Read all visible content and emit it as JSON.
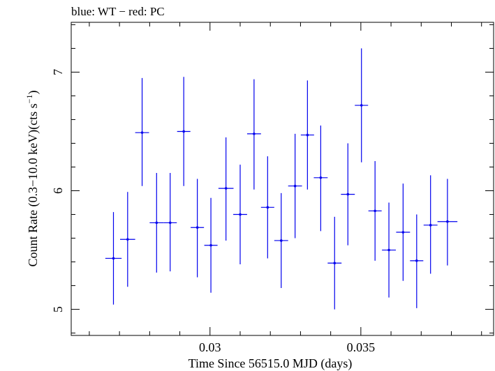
{
  "chart_data": {
    "type": "scatter",
    "title": "blue: WT − red: PC",
    "xlabel": "Time Since 56515.0 MJD (days)",
    "ylabel": "Count Rate (0.3−10.0 keV)(cts s",
    "ylabel_sup": "−1",
    "ylabel_end": ")",
    "xlim": [
      0.0254,
      0.0394
    ],
    "ylim": [
      4.78,
      7.42
    ],
    "x_ticks": [
      0.03,
      0.035
    ],
    "x_tick_labels": [
      "0.03",
      "0.035"
    ],
    "y_ticks": [
      5,
      6,
      7
    ],
    "y_tick_labels": [
      "5",
      "6",
      "7"
    ],
    "colors": {
      "WT": "#0000ee",
      "axis": "#000000"
    },
    "series": [
      {
        "name": "WT",
        "points": [
          {
            "x": 0.0268,
            "xerr": 0.00027,
            "y": 5.43,
            "ylo": 5.04,
            "yhi": 5.82
          },
          {
            "x": 0.02727,
            "xerr": 0.00025,
            "y": 5.59,
            "ylo": 5.19,
            "yhi": 5.99
          },
          {
            "x": 0.02775,
            "xerr": 0.00023,
            "y": 6.49,
            "ylo": 6.04,
            "yhi": 6.95
          },
          {
            "x": 0.02823,
            "xerr": 0.00023,
            "y": 5.73,
            "ylo": 5.31,
            "yhi": 6.15
          },
          {
            "x": 0.02868,
            "xerr": 0.00022,
            "y": 5.73,
            "ylo": 5.32,
            "yhi": 6.15
          },
          {
            "x": 0.02913,
            "xerr": 0.00022,
            "y": 6.5,
            "ylo": 6.04,
            "yhi": 6.96
          },
          {
            "x": 0.02958,
            "xerr": 0.00022,
            "y": 5.69,
            "ylo": 5.27,
            "yhi": 6.1
          },
          {
            "x": 0.03003,
            "xerr": 0.00022,
            "y": 5.54,
            "ylo": 5.14,
            "yhi": 5.94
          },
          {
            "x": 0.03053,
            "xerr": 0.00025,
            "y": 6.02,
            "ylo": 5.58,
            "yhi": 6.45
          },
          {
            "x": 0.031,
            "xerr": 0.00023,
            "y": 5.8,
            "ylo": 5.38,
            "yhi": 6.22
          },
          {
            "x": 0.03146,
            "xerr": 0.00023,
            "y": 6.48,
            "ylo": 6.01,
            "yhi": 6.94
          },
          {
            "x": 0.03191,
            "xerr": 0.00022,
            "y": 5.86,
            "ylo": 5.43,
            "yhi": 6.29
          },
          {
            "x": 0.03236,
            "xerr": 0.00023,
            "y": 5.58,
            "ylo": 5.18,
            "yhi": 5.98
          },
          {
            "x": 0.03282,
            "xerr": 0.00023,
            "y": 6.04,
            "ylo": 5.6,
            "yhi": 6.48
          },
          {
            "x": 0.03323,
            "xerr": 0.00022,
            "y": 6.47,
            "ylo": 6.01,
            "yhi": 6.93
          },
          {
            "x": 0.03367,
            "xerr": 0.00023,
            "y": 6.11,
            "ylo": 5.66,
            "yhi": 6.55
          },
          {
            "x": 0.03413,
            "xerr": 0.00023,
            "y": 5.39,
            "ylo": 5.0,
            "yhi": 5.78
          },
          {
            "x": 0.03457,
            "xerr": 0.00023,
            "y": 5.97,
            "ylo": 5.54,
            "yhi": 6.4
          },
          {
            "x": 0.03502,
            "xerr": 0.00022,
            "y": 6.72,
            "ylo": 6.24,
            "yhi": 7.2
          },
          {
            "x": 0.03547,
            "xerr": 0.00022,
            "y": 5.83,
            "ylo": 5.41,
            "yhi": 6.25
          },
          {
            "x": 0.03593,
            "xerr": 0.00023,
            "y": 5.5,
            "ylo": 5.1,
            "yhi": 5.9
          },
          {
            "x": 0.0364,
            "xerr": 0.00023,
            "y": 5.65,
            "ylo": 5.24,
            "yhi": 6.06
          },
          {
            "x": 0.03685,
            "xerr": 0.00022,
            "y": 5.41,
            "ylo": 5.01,
            "yhi": 5.8
          },
          {
            "x": 0.03731,
            "xerr": 0.00023,
            "y": 5.71,
            "ylo": 5.3,
            "yhi": 6.13
          },
          {
            "x": 0.03787,
            "xerr": 0.00033,
            "y": 5.74,
            "ylo": 5.37,
            "yhi": 6.1
          }
        ]
      }
    ]
  }
}
